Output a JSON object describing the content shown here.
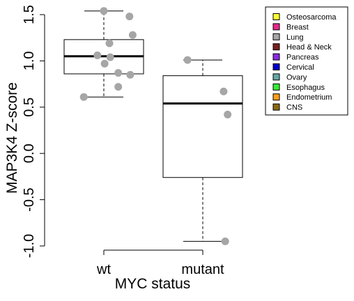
{
  "chart_data": {
    "type": "box",
    "xlabel": "MYC status",
    "ylabel": "MAP3K4 Z-score",
    "ylim": [
      -1.0,
      1.5
    ],
    "yticks": [
      -1.0,
      -0.5,
      0.0,
      0.5,
      1.0,
      1.5
    ],
    "ytick_labels": [
      "-1.0",
      "-0.5",
      "0.0",
      "0.5",
      "1.0",
      "1.5"
    ],
    "categories": [
      "wt",
      "mutant"
    ],
    "boxes": [
      {
        "category": "wt",
        "min": 0.61,
        "q1": 0.86,
        "median": 1.05,
        "q3": 1.23,
        "max": 1.54
      },
      {
        "category": "mutant",
        "min": -0.95,
        "q1": -0.26,
        "median": 0.54,
        "q3": 0.84,
        "max": 1.01
      }
    ],
    "points": [
      {
        "category": "wt",
        "y": 1.54,
        "jitter": 0.0
      },
      {
        "category": "wt",
        "y": 1.48,
        "jitter": 0.32
      },
      {
        "category": "wt",
        "y": 1.28,
        "jitter": 0.36
      },
      {
        "category": "wt",
        "y": 1.19,
        "jitter": 0.07
      },
      {
        "category": "wt",
        "y": 1.06,
        "jitter": -0.08
      },
      {
        "category": "wt",
        "y": 1.04,
        "jitter": 0.08
      },
      {
        "category": "wt",
        "y": 0.97,
        "jitter": 0.01
      },
      {
        "category": "wt",
        "y": 0.87,
        "jitter": 0.18
      },
      {
        "category": "wt",
        "y": 0.85,
        "jitter": 0.33
      },
      {
        "category": "wt",
        "y": 0.72,
        "jitter": 0.18
      },
      {
        "category": "wt",
        "y": 0.61,
        "jitter": -0.25
      },
      {
        "category": "mutant",
        "y": 1.01,
        "jitter": -0.19
      },
      {
        "category": "mutant",
        "y": 0.67,
        "jitter": 0.26
      },
      {
        "category": "mutant",
        "y": 0.42,
        "jitter": 0.31
      },
      {
        "category": "mutant",
        "y": -0.95,
        "jitter": 0.28
      }
    ],
    "point_color": "#a6a6a6",
    "legend": {
      "position": "top-right",
      "entries": [
        {
          "label": "Osteosarcoma",
          "color": "#ffff33"
        },
        {
          "label": "Breast",
          "color": "#e7298a"
        },
        {
          "label": "Lung",
          "color": "#a6a6a6"
        },
        {
          "label": "Head & Neck",
          "color": "#7b1f1f"
        },
        {
          "label": "Pancreas",
          "color": "#8a2be2"
        },
        {
          "label": "Cervical",
          "color": "#0000cd"
        },
        {
          "label": "Ovary",
          "color": "#66a6a6"
        },
        {
          "label": "Esophagus",
          "color": "#33ee33"
        },
        {
          "label": "Endometrium",
          "color": "#ff9f1a"
        },
        {
          "label": "CNS",
          "color": "#8b6914"
        }
      ]
    }
  }
}
